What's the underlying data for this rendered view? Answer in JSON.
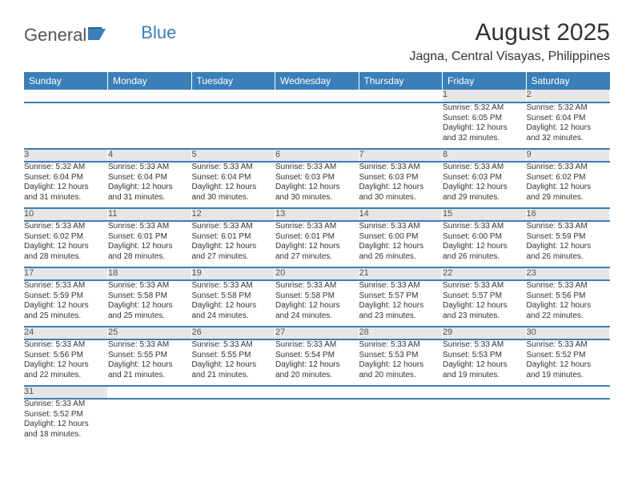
{
  "logo": {
    "general": "General",
    "blue": "Blue"
  },
  "title": "August 2025",
  "location": "Jagna, Central Visayas, Philippines",
  "colors": {
    "header_bg": "#3a7fb8",
    "header_text": "#ffffff",
    "daynum_bg": "#e6e6e6",
    "text": "#333333",
    "row_border": "#3a7fb8"
  },
  "day_headers": [
    "Sunday",
    "Monday",
    "Tuesday",
    "Wednesday",
    "Thursday",
    "Friday",
    "Saturday"
  ],
  "weeks": [
    [
      null,
      null,
      null,
      null,
      null,
      {
        "n": "1",
        "sr": "Sunrise: 5:32 AM",
        "ss": "Sunset: 6:05 PM",
        "d1": "Daylight: 12 hours",
        "d2": "and 32 minutes."
      },
      {
        "n": "2",
        "sr": "Sunrise: 5:32 AM",
        "ss": "Sunset: 6:04 PM",
        "d1": "Daylight: 12 hours",
        "d2": "and 32 minutes."
      }
    ],
    [
      {
        "n": "3",
        "sr": "Sunrise: 5:32 AM",
        "ss": "Sunset: 6:04 PM",
        "d1": "Daylight: 12 hours",
        "d2": "and 31 minutes."
      },
      {
        "n": "4",
        "sr": "Sunrise: 5:33 AM",
        "ss": "Sunset: 6:04 PM",
        "d1": "Daylight: 12 hours",
        "d2": "and 31 minutes."
      },
      {
        "n": "5",
        "sr": "Sunrise: 5:33 AM",
        "ss": "Sunset: 6:04 PM",
        "d1": "Daylight: 12 hours",
        "d2": "and 30 minutes."
      },
      {
        "n": "6",
        "sr": "Sunrise: 5:33 AM",
        "ss": "Sunset: 6:03 PM",
        "d1": "Daylight: 12 hours",
        "d2": "and 30 minutes."
      },
      {
        "n": "7",
        "sr": "Sunrise: 5:33 AM",
        "ss": "Sunset: 6:03 PM",
        "d1": "Daylight: 12 hours",
        "d2": "and 30 minutes."
      },
      {
        "n": "8",
        "sr": "Sunrise: 5:33 AM",
        "ss": "Sunset: 6:03 PM",
        "d1": "Daylight: 12 hours",
        "d2": "and 29 minutes."
      },
      {
        "n": "9",
        "sr": "Sunrise: 5:33 AM",
        "ss": "Sunset: 6:02 PM",
        "d1": "Daylight: 12 hours",
        "d2": "and 29 minutes."
      }
    ],
    [
      {
        "n": "10",
        "sr": "Sunrise: 5:33 AM",
        "ss": "Sunset: 6:02 PM",
        "d1": "Daylight: 12 hours",
        "d2": "and 28 minutes."
      },
      {
        "n": "11",
        "sr": "Sunrise: 5:33 AM",
        "ss": "Sunset: 6:01 PM",
        "d1": "Daylight: 12 hours",
        "d2": "and 28 minutes."
      },
      {
        "n": "12",
        "sr": "Sunrise: 5:33 AM",
        "ss": "Sunset: 6:01 PM",
        "d1": "Daylight: 12 hours",
        "d2": "and 27 minutes."
      },
      {
        "n": "13",
        "sr": "Sunrise: 5:33 AM",
        "ss": "Sunset: 6:01 PM",
        "d1": "Daylight: 12 hours",
        "d2": "and 27 minutes."
      },
      {
        "n": "14",
        "sr": "Sunrise: 5:33 AM",
        "ss": "Sunset: 6:00 PM",
        "d1": "Daylight: 12 hours",
        "d2": "and 26 minutes."
      },
      {
        "n": "15",
        "sr": "Sunrise: 5:33 AM",
        "ss": "Sunset: 6:00 PM",
        "d1": "Daylight: 12 hours",
        "d2": "and 26 minutes."
      },
      {
        "n": "16",
        "sr": "Sunrise: 5:33 AM",
        "ss": "Sunset: 5:59 PM",
        "d1": "Daylight: 12 hours",
        "d2": "and 26 minutes."
      }
    ],
    [
      {
        "n": "17",
        "sr": "Sunrise: 5:33 AM",
        "ss": "Sunset: 5:59 PM",
        "d1": "Daylight: 12 hours",
        "d2": "and 25 minutes."
      },
      {
        "n": "18",
        "sr": "Sunrise: 5:33 AM",
        "ss": "Sunset: 5:58 PM",
        "d1": "Daylight: 12 hours",
        "d2": "and 25 minutes."
      },
      {
        "n": "19",
        "sr": "Sunrise: 5:33 AM",
        "ss": "Sunset: 5:58 PM",
        "d1": "Daylight: 12 hours",
        "d2": "and 24 minutes."
      },
      {
        "n": "20",
        "sr": "Sunrise: 5:33 AM",
        "ss": "Sunset: 5:58 PM",
        "d1": "Daylight: 12 hours",
        "d2": "and 24 minutes."
      },
      {
        "n": "21",
        "sr": "Sunrise: 5:33 AM",
        "ss": "Sunset: 5:57 PM",
        "d1": "Daylight: 12 hours",
        "d2": "and 23 minutes."
      },
      {
        "n": "22",
        "sr": "Sunrise: 5:33 AM",
        "ss": "Sunset: 5:57 PM",
        "d1": "Daylight: 12 hours",
        "d2": "and 23 minutes."
      },
      {
        "n": "23",
        "sr": "Sunrise: 5:33 AM",
        "ss": "Sunset: 5:56 PM",
        "d1": "Daylight: 12 hours",
        "d2": "and 22 minutes."
      }
    ],
    [
      {
        "n": "24",
        "sr": "Sunrise: 5:33 AM",
        "ss": "Sunset: 5:56 PM",
        "d1": "Daylight: 12 hours",
        "d2": "and 22 minutes."
      },
      {
        "n": "25",
        "sr": "Sunrise: 5:33 AM",
        "ss": "Sunset: 5:55 PM",
        "d1": "Daylight: 12 hours",
        "d2": "and 21 minutes."
      },
      {
        "n": "26",
        "sr": "Sunrise: 5:33 AM",
        "ss": "Sunset: 5:55 PM",
        "d1": "Daylight: 12 hours",
        "d2": "and 21 minutes."
      },
      {
        "n": "27",
        "sr": "Sunrise: 5:33 AM",
        "ss": "Sunset: 5:54 PM",
        "d1": "Daylight: 12 hours",
        "d2": "and 20 minutes."
      },
      {
        "n": "28",
        "sr": "Sunrise: 5:33 AM",
        "ss": "Sunset: 5:53 PM",
        "d1": "Daylight: 12 hours",
        "d2": "and 20 minutes."
      },
      {
        "n": "29",
        "sr": "Sunrise: 5:33 AM",
        "ss": "Sunset: 5:53 PM",
        "d1": "Daylight: 12 hours",
        "d2": "and 19 minutes."
      },
      {
        "n": "30",
        "sr": "Sunrise: 5:33 AM",
        "ss": "Sunset: 5:52 PM",
        "d1": "Daylight: 12 hours",
        "d2": "and 19 minutes."
      }
    ],
    [
      {
        "n": "31",
        "sr": "Sunrise: 5:33 AM",
        "ss": "Sunset: 5:52 PM",
        "d1": "Daylight: 12 hours",
        "d2": "and 18 minutes."
      },
      null,
      null,
      null,
      null,
      null,
      null
    ]
  ]
}
